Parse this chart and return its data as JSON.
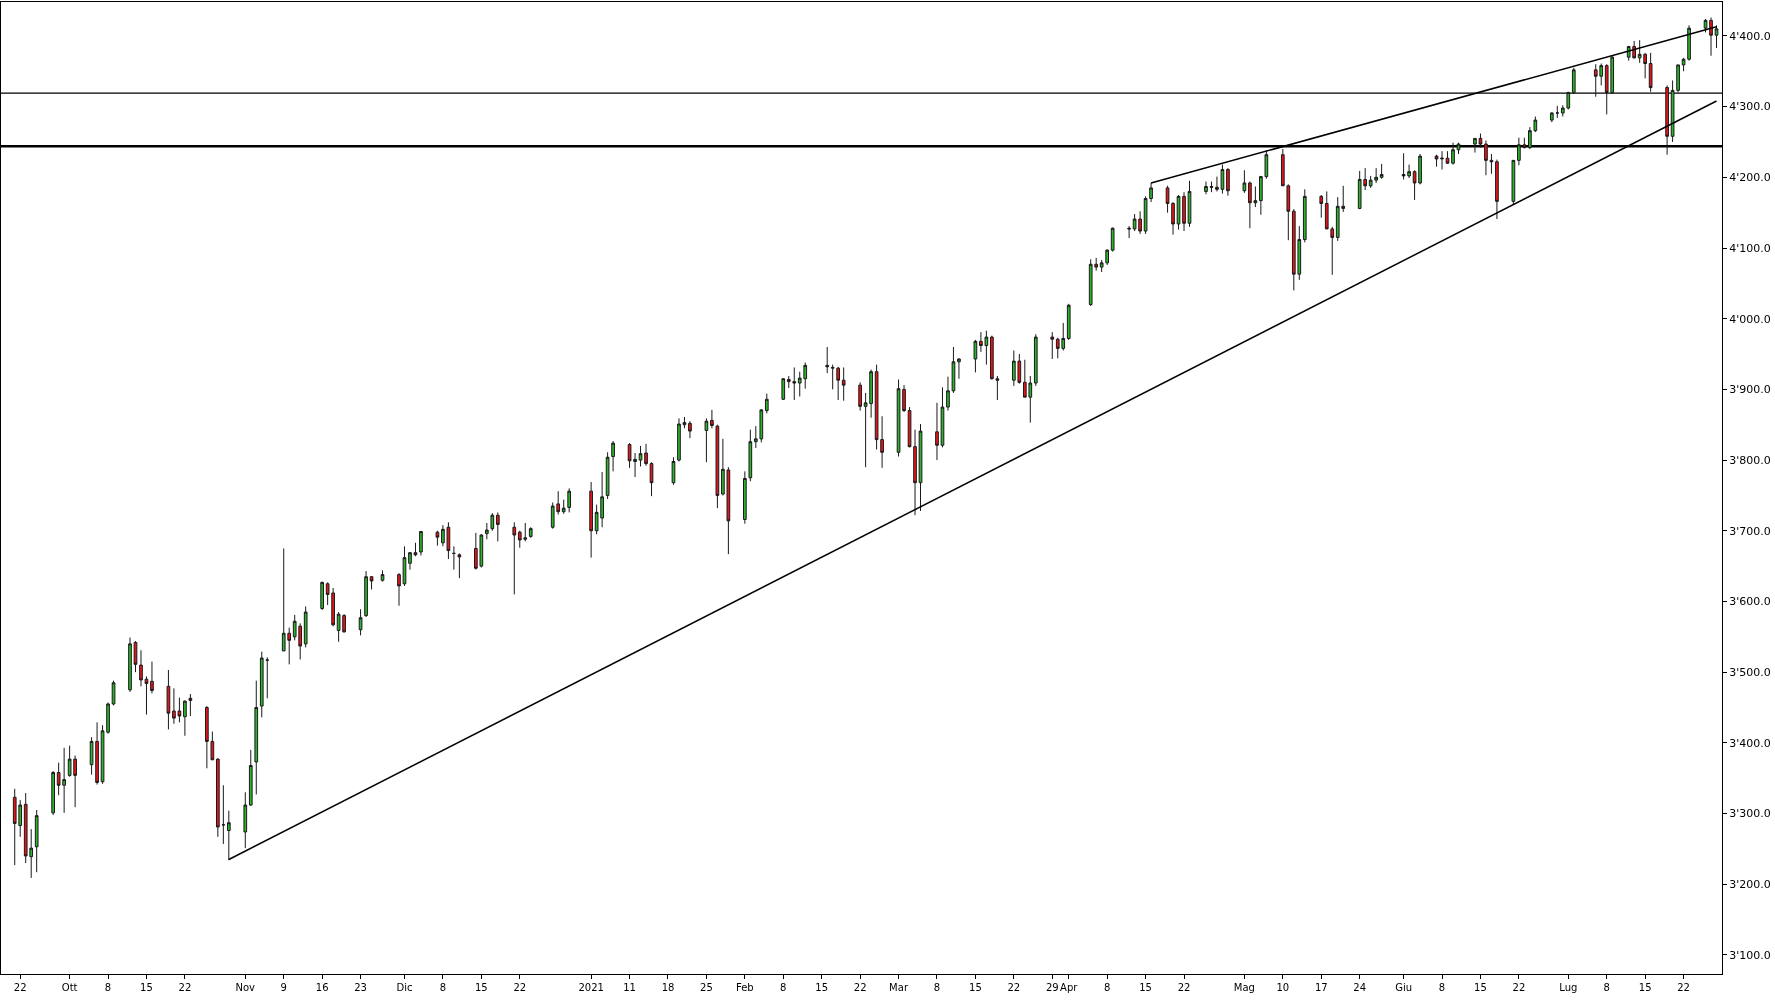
{
  "chart_data": {
    "type": "candlestick",
    "x": [
      "2020-09-21",
      "2020-09-22",
      "2020-09-23",
      "2020-09-24",
      "2020-09-25",
      "2020-09-28",
      "2020-09-29",
      "2020-09-30",
      "2020-10-01",
      "2020-10-02",
      "2020-10-05",
      "2020-10-06",
      "2020-10-07",
      "2020-10-08",
      "2020-10-09",
      "2020-10-12",
      "2020-10-13",
      "2020-10-14",
      "2020-10-15",
      "2020-10-16",
      "2020-10-19",
      "2020-10-20",
      "2020-10-21",
      "2020-10-22",
      "2020-10-23",
      "2020-10-26",
      "2020-10-27",
      "2020-10-28",
      "2020-10-29",
      "2020-10-30",
      "2020-11-02",
      "2020-11-03",
      "2020-11-04",
      "2020-11-05",
      "2020-11-06",
      "2020-11-09",
      "2020-11-10",
      "2020-11-11",
      "2020-11-12",
      "2020-11-13",
      "2020-11-16",
      "2020-11-17",
      "2020-11-18",
      "2020-11-19",
      "2020-11-20",
      "2020-11-23",
      "2020-11-24",
      "2020-11-25",
      "2020-11-27",
      "2020-11-30",
      "2020-12-01",
      "2020-12-02",
      "2020-12-03",
      "2020-12-04",
      "2020-12-07",
      "2020-12-08",
      "2020-12-09",
      "2020-12-10",
      "2020-12-11",
      "2020-12-14",
      "2020-12-15",
      "2020-12-16",
      "2020-12-17",
      "2020-12-18",
      "2020-12-21",
      "2020-12-22",
      "2020-12-23",
      "2020-12-24",
      "2020-12-28",
      "2020-12-29",
      "2020-12-30",
      "2020-12-31",
      "2021-01-04",
      "2021-01-05",
      "2021-01-06",
      "2021-01-07",
      "2021-01-08",
      "2021-01-11",
      "2021-01-12",
      "2021-01-13",
      "2021-01-14",
      "2021-01-15",
      "2021-01-19",
      "2021-01-20",
      "2021-01-21",
      "2021-01-22",
      "2021-01-25",
      "2021-01-26",
      "2021-01-27",
      "2021-01-28",
      "2021-01-29",
      "2021-02-01",
      "2021-02-02",
      "2021-02-03",
      "2021-02-04",
      "2021-02-05",
      "2021-02-08",
      "2021-02-09",
      "2021-02-10",
      "2021-02-11",
      "2021-02-12",
      "2021-02-16",
      "2021-02-17",
      "2021-02-18",
      "2021-02-19",
      "2021-02-22",
      "2021-02-23",
      "2021-02-24",
      "2021-02-25",
      "2021-02-26",
      "2021-03-01",
      "2021-03-02",
      "2021-03-03",
      "2021-03-04",
      "2021-03-05",
      "2021-03-08",
      "2021-03-09",
      "2021-03-10",
      "2021-03-11",
      "2021-03-12",
      "2021-03-15",
      "2021-03-16",
      "2021-03-17",
      "2021-03-18",
      "2021-03-19",
      "2021-03-22",
      "2021-03-23",
      "2021-03-24",
      "2021-03-25",
      "2021-03-26",
      "2021-03-29",
      "2021-03-30",
      "2021-03-31",
      "2021-04-01",
      "2021-04-05",
      "2021-04-06",
      "2021-04-07",
      "2021-04-08",
      "2021-04-09",
      "2021-04-12",
      "2021-04-13",
      "2021-04-14",
      "2021-04-15",
      "2021-04-16",
      "2021-04-19",
      "2021-04-20",
      "2021-04-21",
      "2021-04-22",
      "2021-04-23",
      "2021-04-26",
      "2021-04-27",
      "2021-04-28",
      "2021-04-29",
      "2021-04-30",
      "2021-05-03",
      "2021-05-04",
      "2021-05-05",
      "2021-05-06",
      "2021-05-07",
      "2021-05-10",
      "2021-05-11",
      "2021-05-12",
      "2021-05-13",
      "2021-05-14",
      "2021-05-17",
      "2021-05-18",
      "2021-05-19",
      "2021-05-20",
      "2021-05-21",
      "2021-05-24",
      "2021-05-25",
      "2021-05-26",
      "2021-05-27",
      "2021-05-28",
      "2021-06-01",
      "2021-06-02",
      "2021-06-03",
      "2021-06-04",
      "2021-06-07",
      "2021-06-08",
      "2021-06-09",
      "2021-06-10",
      "2021-06-11",
      "2021-06-14",
      "2021-06-15",
      "2021-06-16",
      "2021-06-17",
      "2021-06-18",
      "2021-06-21",
      "2021-06-22",
      "2021-06-23",
      "2021-06-24",
      "2021-06-25",
      "2021-06-28",
      "2021-06-29",
      "2021-06-30",
      "2021-07-01",
      "2021-07-02",
      "2021-07-06",
      "2021-07-07",
      "2021-07-08",
      "2021-07-09",
      "2021-07-12",
      "2021-07-13",
      "2021-07-14",
      "2021-07-15",
      "2021-07-16",
      "2021-07-19",
      "2021-07-20",
      "2021-07-21",
      "2021-07-22",
      "2021-07-23",
      "2021-07-26",
      "2021-07-27",
      "2021-07-28"
    ],
    "ohlc": [
      [
        3323,
        3335,
        3227,
        3286
      ],
      [
        3283,
        3319,
        3267,
        3312
      ],
      [
        3313,
        3329,
        3230,
        3240
      ],
      [
        3239,
        3278,
        3209,
        3251
      ],
      [
        3253,
        3305,
        3217,
        3297
      ],
      [
        3301,
        3360,
        3298,
        3358
      ],
      [
        3358,
        3372,
        3326,
        3340
      ],
      [
        3340,
        3393,
        3301,
        3348
      ],
      [
        3354,
        3396,
        3352,
        3377
      ],
      [
        3377,
        3382,
        3309,
        3354
      ],
      [
        3369,
        3408,
        3355,
        3402
      ],
      [
        3402,
        3429,
        3341,
        3344
      ],
      [
        3345,
        3425,
        3342,
        3417
      ],
      [
        3415,
        3457,
        3413,
        3455
      ],
      [
        3455,
        3488,
        3453,
        3485
      ],
      [
        3475,
        3549,
        3472,
        3540
      ],
      [
        3542,
        3544,
        3500,
        3511
      ],
      [
        3510,
        3531,
        3480,
        3489
      ],
      [
        3490,
        3494,
        3440,
        3484
      ],
      [
        3487,
        3515,
        3470,
        3474
      ],
      [
        3480,
        3503,
        3419,
        3442
      ],
      [
        3445,
        3477,
        3427,
        3435
      ],
      [
        3445,
        3464,
        3429,
        3438
      ],
      [
        3437,
        3460,
        3410,
        3459
      ],
      [
        3463,
        3469,
        3438,
        3460
      ],
      [
        3450,
        3452,
        3364,
        3402
      ],
      [
        3402,
        3416,
        3376,
        3376
      ],
      [
        3377,
        3378,
        3267,
        3281
      ],
      [
        3284,
        3340,
        3257,
        3284
      ],
      [
        3276,
        3304,
        3234,
        3287
      ],
      [
        3274,
        3330,
        3251,
        3312
      ],
      [
        3312,
        3390,
        3311,
        3368
      ],
      [
        3373,
        3488,
        3327,
        3450
      ],
      [
        3452,
        3529,
        3436,
        3520
      ],
      [
        3517,
        3521,
        3463,
        3517
      ],
      [
        3530,
        3675,
        3530,
        3555
      ],
      [
        3555,
        3563,
        3511,
        3545
      ],
      [
        3550,
        3581,
        3545,
        3572
      ],
      [
        3565,
        3569,
        3518,
        3537
      ],
      [
        3540,
        3593,
        3535,
        3585
      ],
      [
        3590,
        3628,
        3588,
        3627
      ],
      [
        3625,
        3627,
        3595,
        3610
      ],
      [
        3612,
        3619,
        3565,
        3567
      ],
      [
        3559,
        3585,
        3543,
        3582
      ],
      [
        3580,
        3582,
        3556,
        3557
      ],
      [
        3560,
        3589,
        3552,
        3577
      ],
      [
        3580,
        3643,
        3578,
        3635
      ],
      [
        3635,
        3636,
        3617,
        3629
      ],
      [
        3630,
        3644,
        3628,
        3638
      ],
      [
        3638,
        3640,
        3594,
        3622
      ],
      [
        3625,
        3678,
        3622,
        3662
      ],
      [
        3654,
        3670,
        3645,
        3669
      ],
      [
        3669,
        3683,
        3664,
        3666
      ],
      [
        3670,
        3699,
        3665,
        3699
      ],
      [
        3698,
        3700,
        3679,
        3691
      ],
      [
        3683,
        3708,
        3678,
        3702
      ],
      [
        3705,
        3712,
        3660,
        3672
      ],
      [
        3668,
        3678,
        3645,
        3668
      ],
      [
        3666,
        3668,
        3633,
        3663
      ],
      [
        3675,
        3697,
        3645,
        3647
      ],
      [
        3650,
        3695,
        3648,
        3694
      ],
      [
        3696,
        3711,
        3688,
        3701
      ],
      [
        3703,
        3725,
        3700,
        3722
      ],
      [
        3722,
        3726,
        3685,
        3709
      ],
      [
        3705,
        3712,
        3610,
        3694
      ],
      [
        3698,
        3700,
        3676,
        3687
      ],
      [
        3688,
        3711,
        3685,
        3690
      ],
      [
        3692,
        3705,
        3690,
        3703
      ],
      [
        3705,
        3740,
        3703,
        3735
      ],
      [
        3738,
        3756,
        3723,
        3727
      ],
      [
        3727,
        3744,
        3724,
        3732
      ],
      [
        3733,
        3760,
        3726,
        3756
      ],
      [
        3756,
        3769,
        3662,
        3700
      ],
      [
        3700,
        3737,
        3695,
        3726
      ],
      [
        3718,
        3783,
        3705,
        3748
      ],
      [
        3750,
        3811,
        3745,
        3804
      ],
      [
        3805,
        3827,
        3784,
        3824
      ],
      [
        3822,
        3824,
        3789,
        3799
      ],
      [
        3798,
        3810,
        3776,
        3801
      ],
      [
        3800,
        3820,
        3791,
        3809
      ],
      [
        3810,
        3823,
        3792,
        3795
      ],
      [
        3795,
        3797,
        3749,
        3768
      ],
      [
        3768,
        3804,
        3765,
        3798
      ],
      [
        3800,
        3859,
        3798,
        3851
      ],
      [
        3850,
        3861,
        3845,
        3853
      ],
      [
        3852,
        3855,
        3831,
        3841
      ],
      [
        3842,
        3859,
        3797,
        3855
      ],
      [
        3856,
        3871,
        3845,
        3849
      ],
      [
        3848,
        3850,
        3732,
        3750
      ],
      [
        3752,
        3830,
        3750,
        3787
      ],
      [
        3786,
        3790,
        3667,
        3714
      ],
      [
        3716,
        3784,
        3710,
        3774
      ],
      [
        3775,
        3843,
        3770,
        3826
      ],
      [
        3826,
        3848,
        3817,
        3830
      ],
      [
        3830,
        3872,
        3825,
        3871
      ],
      [
        3870,
        3894,
        3866,
        3886
      ],
      [
        3886,
        3916,
        3885,
        3915
      ],
      [
        3914,
        3919,
        3902,
        3911
      ],
      [
        3911,
        3931,
        3885,
        3909
      ],
      [
        3909,
        3925,
        3890,
        3916
      ],
      [
        3915,
        3938,
        3901,
        3934
      ],
      [
        3934,
        3960,
        3923,
        3932
      ],
      [
        3930,
        3935,
        3900,
        3931
      ],
      [
        3930,
        3932,
        3885,
        3913
      ],
      [
        3913,
        3931,
        3884,
        3906
      ],
      [
        3906,
        3910,
        3870,
        3876
      ],
      [
        3876,
        3895,
        3790,
        3881
      ],
      [
        3880,
        3928,
        3860,
        3925
      ],
      [
        3925,
        3935,
        3815,
        3829
      ],
      [
        3829,
        3862,
        3789,
        3811
      ],
      [
        3811,
        3914,
        3805,
        3901
      ],
      [
        3900,
        3906,
        3868,
        3870
      ],
      [
        3870,
        3875,
        3818,
        3819
      ],
      [
        3819,
        3843,
        3722,
        3768
      ],
      [
        3768,
        3851,
        3728,
        3841
      ],
      [
        3840,
        3881,
        3800,
        3821
      ],
      [
        3821,
        3903,
        3818,
        3875
      ],
      [
        3875,
        3918,
        3870,
        3898
      ],
      [
        3898,
        3960,
        3895,
        3939
      ],
      [
        3939,
        3944,
        3915,
        3943
      ],
      [
        3943,
        3970,
        3924,
        3968
      ],
      [
        3968,
        3981,
        3953,
        3962
      ],
      [
        3962,
        3983,
        3935,
        3974
      ],
      [
        3974,
        3976,
        3914,
        3915
      ],
      [
        3915,
        3919,
        3885,
        3913
      ],
      [
        3913,
        3955,
        3905,
        3940
      ],
      [
        3940,
        3950,
        3908,
        3910
      ],
      [
        3910,
        3942,
        3889,
        3889
      ],
      [
        3889,
        3919,
        3853,
        3909
      ],
      [
        3909,
        3978,
        3905,
        3974
      ],
      [
        3974,
        3981,
        3943,
        3971
      ],
      [
        3971,
        3973,
        3944,
        3958
      ],
      [
        3958,
        3994,
        3955,
        3972
      ],
      [
        3972,
        4021,
        3970,
        4019
      ],
      [
        4020,
        4084,
        4018,
        4077
      ],
      [
        4077,
        4086,
        4068,
        4073
      ],
      [
        4073,
        4083,
        4066,
        4079
      ],
      [
        4079,
        4098,
        4076,
        4097
      ],
      [
        4097,
        4129,
        4095,
        4128
      ],
      [
        4128,
        4131,
        4114,
        4127
      ],
      [
        4127,
        4148,
        4124,
        4141
      ],
      [
        4141,
        4152,
        4120,
        4124
      ],
      [
        4124,
        4173,
        4120,
        4170
      ],
      [
        4170,
        4192,
        4165,
        4185
      ],
      [
        4185,
        4188,
        4150,
        4163
      ],
      [
        4163,
        4165,
        4119,
        4134
      ],
      [
        4134,
        4175,
        4126,
        4173
      ],
      [
        4173,
        4179,
        4124,
        4135
      ],
      [
        4135,
        4195,
        4130,
        4180
      ],
      [
        4180,
        4194,
        4176,
        4187
      ],
      [
        4187,
        4194,
        4179,
        4186
      ],
      [
        4186,
        4201,
        4180,
        4183
      ],
      [
        4183,
        4218,
        4177,
        4211
      ],
      [
        4211,
        4213,
        4174,
        4181
      ],
      [
        4181,
        4210,
        4178,
        4192
      ],
      [
        4192,
        4194,
        4128,
        4164
      ],
      [
        4164,
        4187,
        4158,
        4167
      ],
      [
        4167,
        4202,
        4147,
        4201
      ],
      [
        4201,
        4238,
        4198,
        4232
      ],
      [
        4232,
        4240,
        4188,
        4188
      ],
      [
        4188,
        4190,
        4111,
        4152
      ],
      [
        4152,
        4155,
        4040,
        4063
      ],
      [
        4063,
        4131,
        4055,
        4112
      ],
      [
        4112,
        4183,
        4108,
        4173
      ],
      [
        4173,
        4175,
        4143,
        4163
      ],
      [
        4163,
        4180,
        4127,
        4127
      ],
      [
        4127,
        4130,
        4062,
        4115
      ],
      [
        4115,
        4172,
        4110,
        4159
      ],
      [
        4159,
        4188,
        4151,
        4156
      ],
      [
        4156,
        4209,
        4155,
        4197
      ],
      [
        4197,
        4213,
        4182,
        4188
      ],
      [
        4188,
        4202,
        4185,
        4196
      ],
      [
        4196,
        4213,
        4192,
        4200
      ],
      [
        4200,
        4219,
        4198,
        4204
      ],
      [
        4204,
        4234,
        4197,
        4202
      ],
      [
        4202,
        4218,
        4199,
        4208
      ],
      [
        4208,
        4210,
        4168,
        4192
      ],
      [
        4192,
        4233,
        4190,
        4230
      ],
      [
        4230,
        4232,
        4215,
        4226
      ],
      [
        4226,
        4237,
        4211,
        4227
      ],
      [
        4227,
        4237,
        4219,
        4220
      ],
      [
        4220,
        4249,
        4218,
        4239
      ],
      [
        4239,
        4249,
        4233,
        4247
      ],
      [
        4247,
        4255,
        4235,
        4255
      ],
      [
        4255,
        4262,
        4242,
        4247
      ],
      [
        4247,
        4252,
        4203,
        4224
      ],
      [
        4224,
        4233,
        4205,
        4222
      ],
      [
        4222,
        4225,
        4141,
        4166
      ],
      [
        4166,
        4224,
        4162,
        4224
      ],
      [
        4224,
        4256,
        4217,
        4246
      ],
      [
        4246,
        4256,
        4241,
        4242
      ],
      [
        4242,
        4271,
        4240,
        4266
      ],
      [
        4266,
        4286,
        4264,
        4281
      ],
      [
        4281,
        4292,
        4278,
        4291
      ],
      [
        4291,
        4301,
        4284,
        4291
      ],
      [
        4291,
        4302,
        4286,
        4298
      ],
      [
        4298,
        4321,
        4296,
        4320
      ],
      [
        4320,
        4355,
        4318,
        4352
      ],
      [
        4352,
        4360,
        4314,
        4343
      ],
      [
        4343,
        4361,
        4330,
        4358
      ],
      [
        4358,
        4360,
        4289,
        4320
      ],
      [
        4320,
        4372,
        4318,
        4370
      ],
      [
        4370,
        4386,
        4365,
        4385
      ],
      [
        4385,
        4393,
        4368,
        4369
      ],
      [
        4369,
        4394,
        4362,
        4374
      ],
      [
        4374,
        4376,
        4340,
        4361
      ],
      [
        4361,
        4376,
        4321,
        4327
      ],
      [
        4327,
        4330,
        4232,
        4258
      ],
      [
        4258,
        4337,
        4250,
        4323
      ],
      [
        4323,
        4359,
        4320,
        4359
      ],
      [
        4359,
        4369,
        4350,
        4367
      ],
      [
        4367,
        4415,
        4365,
        4411
      ],
      [
        4411,
        4424,
        4405,
        4422
      ],
      [
        4422,
        4426,
        4372,
        4401
      ],
      [
        4401,
        4415,
        4383,
        4410
      ]
    ],
    "series": [
      {
        "type": "line",
        "x": [
          "2020-10-30",
          "2021-07-28"
        ],
        "values": [
          3235,
          4308
        ],
        "color": "#000000"
      },
      {
        "type": "line",
        "x": [
          "2021-04-16",
          "2021-07-28"
        ],
        "values": [
          4192,
          4413
        ],
        "color": "#000000"
      }
    ],
    "ref_lines": [
      {
        "axis": "y",
        "value": 4319,
        "color": "#000000"
      },
      {
        "axis": "y",
        "value": 4244,
        "color": "#000000"
      }
    ],
    "xlim": [
      "2020-09-18T12:00",
      "2021-07-29"
    ],
    "xticks": [
      {
        "value": "2020-09-22",
        "label": "22"
      },
      {
        "value": "2020-10-01",
        "label": "Ott"
      },
      {
        "value": "2020-10-08",
        "label": "8"
      },
      {
        "value": "2020-10-15",
        "label": "15"
      },
      {
        "value": "2020-10-22",
        "label": "22"
      },
      {
        "value": "2020-11-02",
        "label": "Nov"
      },
      {
        "value": "2020-11-09",
        "label": "9"
      },
      {
        "value": "2020-11-16",
        "label": "16"
      },
      {
        "value": "2020-11-23",
        "label": "23"
      },
      {
        "value": "2020-12-01",
        "label": "Dic"
      },
      {
        "value": "2020-12-08",
        "label": "8"
      },
      {
        "value": "2020-12-15",
        "label": "15"
      },
      {
        "value": "2020-12-22",
        "label": "22"
      },
      {
        "value": "2021-01-04",
        "label": "2021"
      },
      {
        "value": "2021-01-11",
        "label": "11"
      },
      {
        "value": "2021-01-18",
        "label": "18"
      },
      {
        "value": "2021-01-25",
        "label": "25"
      },
      {
        "value": "2021-02-01",
        "label": "Feb"
      },
      {
        "value": "2021-02-08",
        "label": "8"
      },
      {
        "value": "2021-02-15",
        "label": "15"
      },
      {
        "value": "2021-02-22",
        "label": "22"
      },
      {
        "value": "2021-03-01",
        "label": "Mar"
      },
      {
        "value": "2021-03-08",
        "label": "8"
      },
      {
        "value": "2021-03-15",
        "label": "15"
      },
      {
        "value": "2021-03-22",
        "label": "22"
      },
      {
        "value": "2021-03-29",
        "label": "29"
      },
      {
        "value": "2021-04-01",
        "label": "Apr"
      },
      {
        "value": "2021-04-08",
        "label": "8"
      },
      {
        "value": "2021-04-15",
        "label": "15"
      },
      {
        "value": "2021-04-22",
        "label": "22"
      },
      {
        "value": "2021-05-03",
        "label": "Mag"
      },
      {
        "value": "2021-05-10",
        "label": "10"
      },
      {
        "value": "2021-05-17",
        "label": "17"
      },
      {
        "value": "2021-05-24",
        "label": "24"
      },
      {
        "value": "2021-06-01",
        "label": "Giu"
      },
      {
        "value": "2021-06-08",
        "label": "8"
      },
      {
        "value": "2021-06-15",
        "label": "15"
      },
      {
        "value": "2021-06-22",
        "label": "22"
      },
      {
        "value": "2021-07-01",
        "label": "Lug"
      },
      {
        "value": "2021-07-08",
        "label": "8"
      },
      {
        "value": "2021-07-15",
        "label": "15"
      },
      {
        "value": "2021-07-22",
        "label": "22"
      }
    ],
    "ylim": [
      3073,
      4448
    ],
    "yticks": [
      {
        "value": 3100,
        "label": "3'100.0"
      },
      {
        "value": 3200,
        "label": "3'200.0"
      },
      {
        "value": 3300,
        "label": "3'300.0"
      },
      {
        "value": 3400,
        "label": "3'400.0"
      },
      {
        "value": 3500,
        "label": "3'500.0"
      },
      {
        "value": 3600,
        "label": "3'600.0"
      },
      {
        "value": 3700,
        "label": "3'700.0"
      },
      {
        "value": 3800,
        "label": "3'800.0"
      },
      {
        "value": 3900,
        "label": "3'900.0"
      },
      {
        "value": 4000,
        "label": "4'000.0"
      },
      {
        "value": 4100,
        "label": "4'100.0"
      },
      {
        "value": 4200,
        "label": "4'200.0"
      },
      {
        "value": 4300,
        "label": "4'300.0"
      },
      {
        "value": 4400,
        "label": "4'400.0"
      }
    ],
    "grid": false
  }
}
